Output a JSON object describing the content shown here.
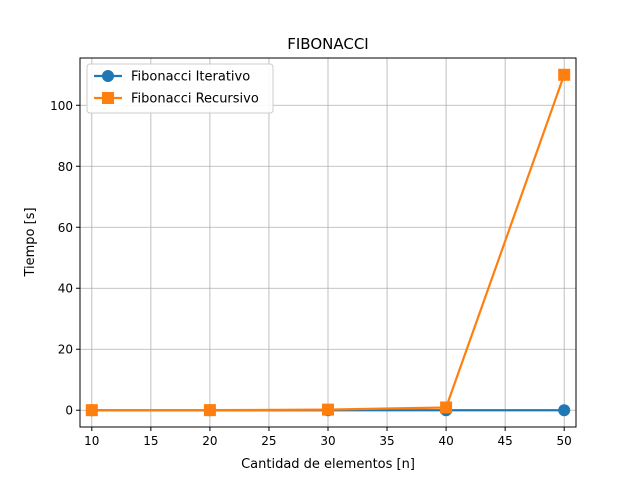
{
  "chart_data": {
    "type": "line",
    "title": "FIBONACCI",
    "xlabel": "Cantidad de elementos [n]",
    "ylabel": "Tiempo [s]",
    "x": [
      10,
      20,
      30,
      40,
      50
    ],
    "xlim": [
      9,
      51
    ],
    "ylim": [
      -5.5,
      115.5
    ],
    "xticks": [
      10,
      15,
      20,
      25,
      30,
      35,
      40,
      45,
      50
    ],
    "yticks": [
      0,
      20,
      40,
      60,
      80,
      100
    ],
    "grid": true,
    "legend_position": "top-left",
    "series": [
      {
        "name": "Fibonacci Iterativo",
        "values": [
          0,
          0,
          0,
          0,
          0
        ],
        "color": "#1f77b4",
        "marker": "circle"
      },
      {
        "name": "Fibonacci Recursivo",
        "values": [
          0.02,
          0.03,
          0.2,
          0.9,
          110
        ],
        "color": "#ff7f0e",
        "marker": "square"
      }
    ]
  }
}
